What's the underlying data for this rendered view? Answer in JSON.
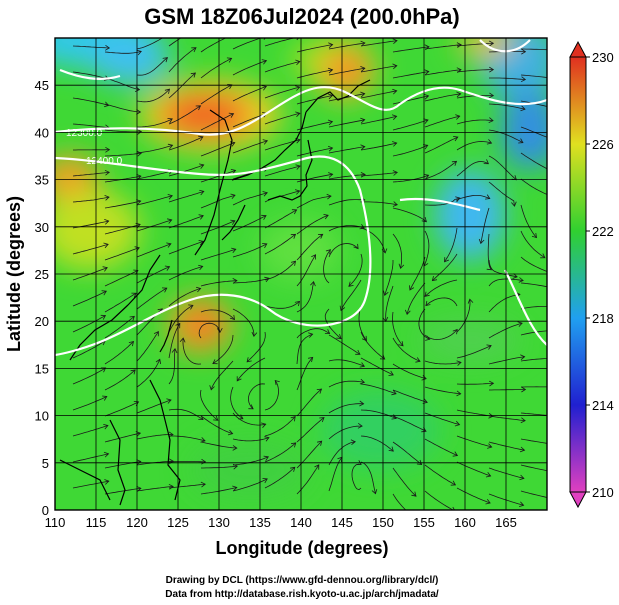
{
  "title": "GSM 18Z06Jul2024 (200.0hPa)",
  "xlabel": "Longitude (degrees)",
  "ylabel": "Latitude  (degrees)",
  "credits": {
    "line1": "Drawing by DCL (https://www.gfd-dennou.org/library/dcl/)",
    "line2": "Data from http://database.rish.kyoto-u.ac.jp/arch/jmadata/"
  },
  "contour_labels": [
    "12300.0",
    "12400.0"
  ],
  "chart_data": {
    "type": "heatmap",
    "title": "GSM 18Z06Jul2024 (200.0hPa)",
    "xlabel": "Longitude (degrees)",
    "ylabel": "Latitude  (degrees)",
    "xlim": [
      110,
      170
    ],
    "ylim": [
      0,
      50
    ],
    "x_ticks": [
      110,
      115,
      120,
      125,
      130,
      135,
      140,
      145,
      150,
      155,
      160,
      165
    ],
    "y_ticks": [
      0,
      5,
      10,
      15,
      20,
      25,
      30,
      35,
      40,
      45
    ],
    "grid": true,
    "colorbar": {
      "min": 210,
      "max": 230,
      "ticks": [
        210,
        214,
        218,
        222,
        226,
        230
      ],
      "colors": [
        "#e040c0",
        "#2020d0",
        "#20a0f0",
        "#30d030",
        "#e0e020",
        "#e03020"
      ]
    },
    "warm_spots": [
      {
        "lon": 128,
        "lat": 42.5,
        "value": 229
      },
      {
        "lon": 145,
        "lat": 46.5,
        "value": 228
      },
      {
        "lon": 127.5,
        "lat": 22,
        "value": 228
      },
      {
        "lon": 162,
        "lat": 49,
        "value": 228
      },
      {
        "lon": 112,
        "lat": 37,
        "value": 226
      }
    ],
    "cool_spots": [
      {
        "lon": 168,
        "lat": 43,
        "value": 218
      },
      {
        "lon": 160,
        "lat": 35,
        "value": 218
      },
      {
        "lon": 116,
        "lat": 48,
        "value": 219
      }
    ]
  }
}
